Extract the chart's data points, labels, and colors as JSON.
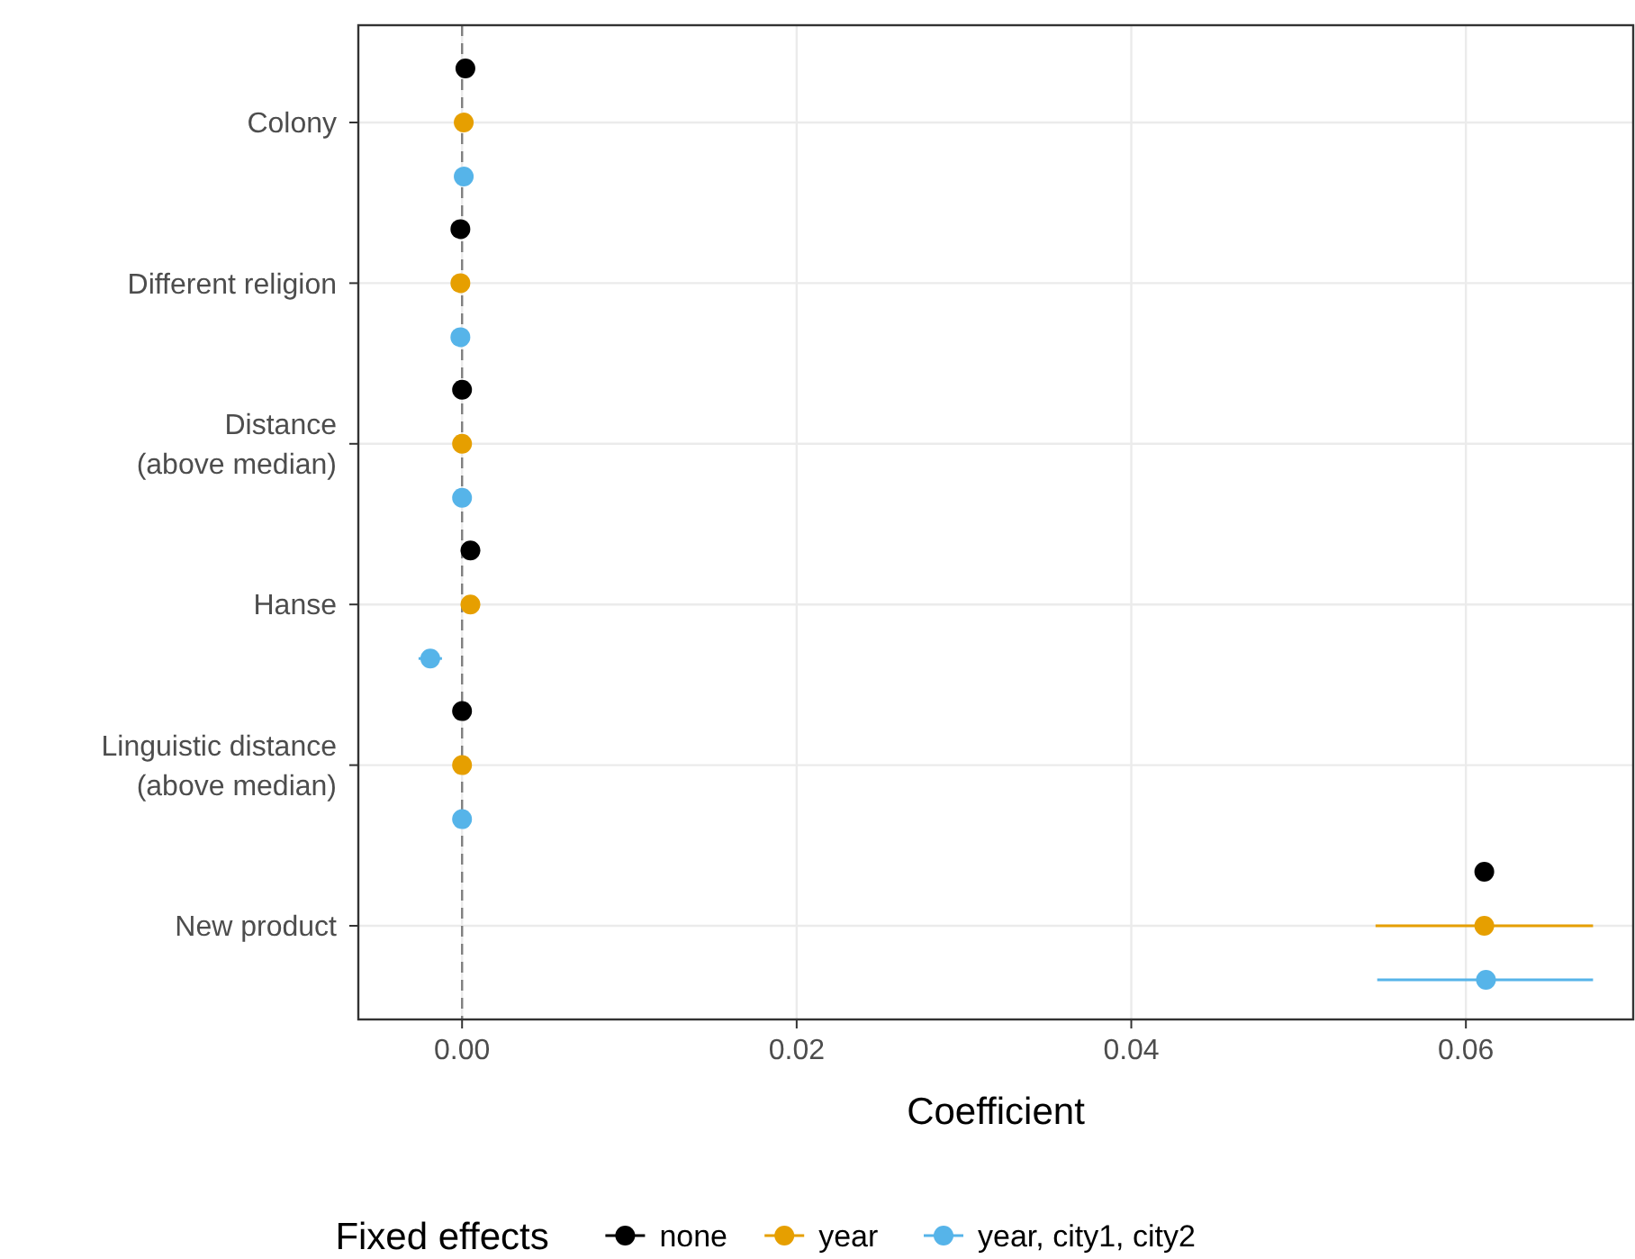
{
  "chart_data": {
    "type": "scatter",
    "orientation": "horizontal",
    "xlabel": "Coefficient",
    "legend_title": "Fixed effects",
    "legend": "bottom",
    "grid": true,
    "marker": "circle",
    "categories": [
      "Colony",
      "Different religion",
      "Distance\n(above median)",
      "Hanse",
      "Linguistic distance\n(above median)",
      "New product"
    ],
    "xlim": [
      -0.0062,
      0.07
    ],
    "xticks": [
      {
        "value": 0,
        "label": "0.00"
      },
      {
        "value": 0.02,
        "label": "0.02"
      },
      {
        "value": 0.04,
        "label": "0.04"
      },
      {
        "value": 0.06,
        "label": "0.06"
      }
    ],
    "ref_lines": [
      {
        "axis": "x",
        "value": 0,
        "color": "#808080",
        "line_style": "dashed"
      }
    ],
    "series": [
      {
        "name": "none",
        "color": "#000000",
        "values": [
          0.0002,
          -0.0001,
          0.0,
          0.0005,
          0.0,
          0.0611
        ]
      },
      {
        "name": "year",
        "color": "#e69f00",
        "values": [
          0.0001,
          -0.0001,
          0.0,
          0.0005,
          0.0,
          0.0611
        ],
        "errors": [
          null,
          null,
          null,
          null,
          null,
          [
            0.0546,
            0.0676
          ]
        ]
      },
      {
        "name": "year, city1, city2",
        "color": "#56b4e9",
        "values": [
          0.0001,
          -0.0001,
          0.0,
          -0.0019,
          0.0,
          0.0612
        ],
        "errors": [
          null,
          null,
          null,
          [
            -0.0026,
            -0.0012
          ],
          null,
          [
            0.0547,
            0.0676
          ]
        ]
      }
    ]
  }
}
